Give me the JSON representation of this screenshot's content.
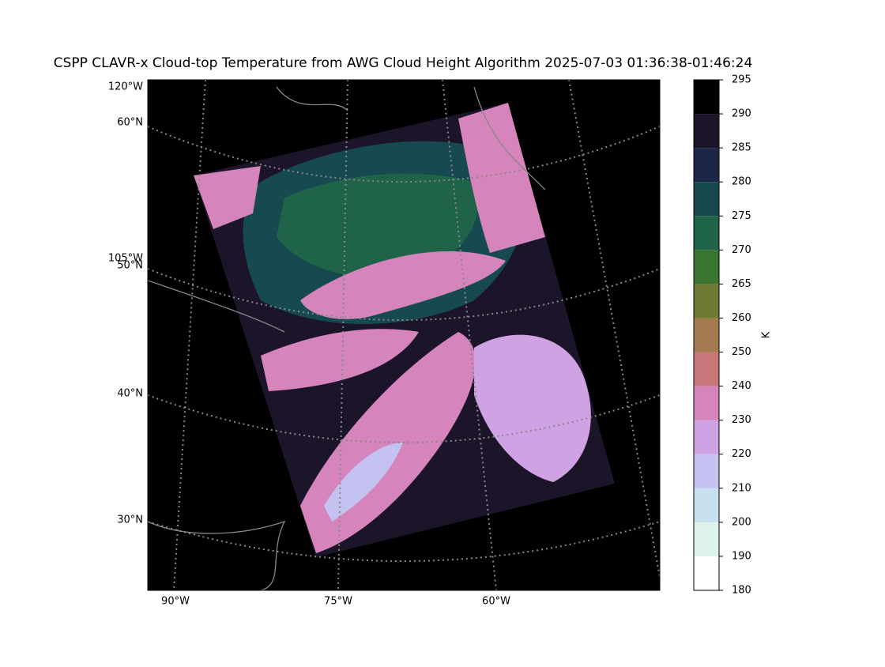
{
  "title": "CSPP CLAVR-x Cloud-top Temperature from AWG Cloud Height Algorithm 2025-07-03 01:36:38-01:46:24",
  "map": {
    "left_labels": [
      "120°W",
      "60°N",
      "105°W",
      "50°N",
      "40°N",
      "30°N"
    ],
    "bottom_labels": [
      "90°W",
      "75°W",
      "60°W"
    ]
  },
  "colorbar": {
    "label": "K",
    "ticks": [
      180,
      190,
      200,
      210,
      220,
      230,
      240,
      250,
      260,
      265,
      270,
      275,
      280,
      285,
      290,
      295
    ],
    "colors": [
      "#ffffff",
      "#ddf3ec",
      "#c6e0f0",
      "#c4c2f0",
      "#cfa3e3",
      "#d685bc",
      "#c97679",
      "#a47b4e",
      "#6e7a31",
      "#3b7532",
      "#1f6448",
      "#174a50",
      "#1c2748",
      "#1c1429",
      "#000000"
    ]
  }
}
